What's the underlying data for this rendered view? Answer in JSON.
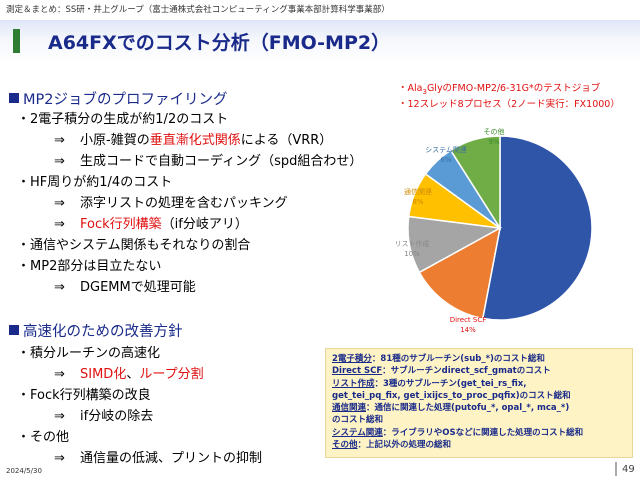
{
  "header": {
    "credit": "測定＆まとめ：SS研・井上グループ（富士通株式会社コンピューティング事業本部計算科学事業部）",
    "title": "A64FXでのコスト分析（FMO-MP2）"
  },
  "section1": {
    "heading": "MP2ジョブのプロファイリング",
    "items": [
      {
        "bullet": "・",
        "text": "2電子積分の生成が約1/2のコスト"
      },
      {
        "arrow": "⇒",
        "pre": "小原-雑賀の",
        "red": "垂直漸化式関係",
        "post": "による（VRR）"
      },
      {
        "arrow": "⇒",
        "text": "生成コードで自動コーディング（spd組合わせ）"
      },
      {
        "bullet": "・",
        "text": "HF周りが約1/4のコスト"
      },
      {
        "arrow": "⇒",
        "text": "添字リストの処理を含むパッキング"
      },
      {
        "arrow": "⇒",
        "red": "Fock行列構築",
        "post": "（if分岐アリ）"
      },
      {
        "bullet": "・",
        "text": "通信やシステム関係もそれなりの割合"
      },
      {
        "bullet": "・",
        "text": "MP2部分は目立たない"
      },
      {
        "arrow": "⇒",
        "text": "DGEMMで処理可能"
      }
    ]
  },
  "section2": {
    "heading": "高速化のための改善方針",
    "items": [
      {
        "bullet": "・",
        "text": "積分ルーチンの高速化"
      },
      {
        "arrow": "⇒",
        "red1": "SIMD化",
        "mid": "、",
        "red2": "ループ分割"
      },
      {
        "bullet": "・",
        "text": "Fock行列構築の改良"
      },
      {
        "arrow": "⇒",
        "text": "if分岐の除去"
      },
      {
        "bullet": "・",
        "text": "その他"
      },
      {
        "arrow": "⇒",
        "text": "通信量の低減、プリントの抑制"
      }
    ]
  },
  "notes": {
    "line1_pre": "・Ala",
    "line1_sub": "3",
    "line1_post": "GlyのFMO-MP2/6-31G*のテストジョブ",
    "line2": "・12スレッド8プロセス（2ノード実行：FX1000）"
  },
  "chart_data": {
    "type": "pie",
    "slices": [
      {
        "name": "2電子積分",
        "value": 53,
        "label": "53%",
        "color": "#2f55a8"
      },
      {
        "name": "Direct SCF",
        "value": 14,
        "label": "14%",
        "color": "#ed7d31"
      },
      {
        "name": "リスト作成",
        "value": 10,
        "label": "10%",
        "color": "#a5a5a5"
      },
      {
        "name": "通信関連",
        "value": 8,
        "label": "8%",
        "color": "#ffc000"
      },
      {
        "name": "システム関連",
        "value": 6,
        "label": "6%",
        "color": "#5b9bd5"
      },
      {
        "name": "その他",
        "value": 9,
        "label": "9%",
        "color": "#70ad47"
      }
    ]
  },
  "legend": [
    {
      "key": "2電子積分",
      "desc": "：81種のサブルーチン(sub_*)のコスト総和"
    },
    {
      "key": "Direct SCF",
      "desc": "：サブルーチンdirect_scf_gmatのコスト"
    },
    {
      "key": "リスト作成",
      "desc": "：3種のサブルーチン(get_tei_rs_fix,"
    },
    {
      "key": "",
      "desc": "get_tei_pq_fix, get_ixijcs_to_proc_pqfix)のコスト総和"
    },
    {
      "key": "通信関連",
      "desc": "：通信に関連した処理(putofu_*, opal_*, mca_*)"
    },
    {
      "key": "",
      "desc": "のコスト総和"
    },
    {
      "key": "システム関連",
      "desc": "：ライブラリやOSなどに関連した処理のコスト総和"
    },
    {
      "key": "その他",
      "desc": "：上記以外の処理の総和"
    }
  ],
  "footer": {
    "date": "2024/5/30",
    "page": "49"
  }
}
